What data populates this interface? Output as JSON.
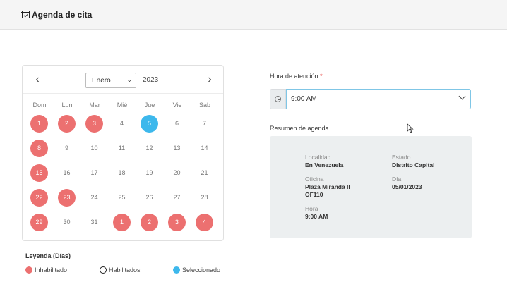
{
  "header": {
    "title": "Agenda de cita",
    "icon": "calendar-check-icon"
  },
  "calendar": {
    "month": "Enero",
    "year": "2023",
    "weekdays": [
      "Dom",
      "Lun",
      "Mar",
      "Mié",
      "Jue",
      "Vie",
      "Sab"
    ],
    "weeks": [
      [
        {
          "n": "1",
          "s": "disabled"
        },
        {
          "n": "2",
          "s": "disabled"
        },
        {
          "n": "3",
          "s": "disabled"
        },
        {
          "n": "4",
          "s": "enabled"
        },
        {
          "n": "5",
          "s": "selected"
        },
        {
          "n": "6",
          "s": "enabled"
        },
        {
          "n": "7",
          "s": "enabled"
        }
      ],
      [
        {
          "n": "8",
          "s": "disabled"
        },
        {
          "n": "9",
          "s": "enabled"
        },
        {
          "n": "10",
          "s": "enabled"
        },
        {
          "n": "11",
          "s": "enabled"
        },
        {
          "n": "12",
          "s": "enabled"
        },
        {
          "n": "13",
          "s": "enabled"
        },
        {
          "n": "14",
          "s": "enabled"
        }
      ],
      [
        {
          "n": "15",
          "s": "disabled"
        },
        {
          "n": "16",
          "s": "enabled"
        },
        {
          "n": "17",
          "s": "enabled"
        },
        {
          "n": "18",
          "s": "enabled"
        },
        {
          "n": "19",
          "s": "enabled"
        },
        {
          "n": "20",
          "s": "enabled"
        },
        {
          "n": "21",
          "s": "enabled"
        }
      ],
      [
        {
          "n": "22",
          "s": "disabled"
        },
        {
          "n": "23",
          "s": "disabled"
        },
        {
          "n": "24",
          "s": "enabled"
        },
        {
          "n": "25",
          "s": "enabled"
        },
        {
          "n": "26",
          "s": "enabled"
        },
        {
          "n": "27",
          "s": "enabled"
        },
        {
          "n": "28",
          "s": "enabled"
        }
      ],
      [
        {
          "n": "29",
          "s": "disabled"
        },
        {
          "n": "30",
          "s": "enabled"
        },
        {
          "n": "31",
          "s": "enabled"
        },
        {
          "n": "1",
          "s": "disabled"
        },
        {
          "n": "2",
          "s": "disabled"
        },
        {
          "n": "3",
          "s": "disabled"
        },
        {
          "n": "4",
          "s": "disabled"
        }
      ]
    ]
  },
  "legend": {
    "title": "Leyenda (Días)",
    "disabled": "Inhabilitado",
    "enabled": "Habilitados",
    "selected": "Seleccionado"
  },
  "form": {
    "hora_label": "Hora de atención",
    "required_mark": "*",
    "hora_value": "9:00 AM",
    "resumen_label": "Resumen de agenda"
  },
  "summary": {
    "localidad_label": "Localidad",
    "localidad_value": "En Venezuela",
    "estado_label": "Estado",
    "estado_value": "Distrito Capital",
    "oficina_label": "Oficina",
    "oficina_value_1": "Plaza Miranda II",
    "oficina_value_2": "OF110",
    "dia_label": "Día",
    "dia_value": "05/01/2023",
    "hora_label": "Hora",
    "hora_value": "9:00 AM"
  },
  "colors": {
    "disabled": "#ec7070",
    "selected": "#3db8ec",
    "focus_border": "#7fc6e6"
  }
}
